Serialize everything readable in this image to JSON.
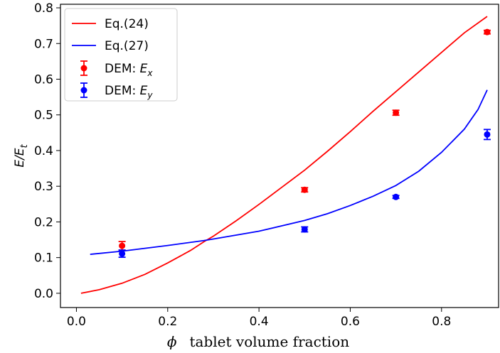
{
  "chart_data": {
    "type": "line",
    "xlabel_symbol": "ϕ",
    "xlabel_text": "tablet volume fraction",
    "ylabel_main": "E/E",
    "ylabel_sub": "t",
    "xlim": [
      -0.035,
      0.925
    ],
    "ylim": [
      -0.04,
      0.81
    ],
    "xticks": [
      0.0,
      0.2,
      0.4,
      0.6,
      0.8
    ],
    "yticks": [
      0.0,
      0.1,
      0.2,
      0.3,
      0.4,
      0.5,
      0.6,
      0.7,
      0.8
    ],
    "grid": false,
    "legend_position": "top-left",
    "series": [
      {
        "name": "Eq.(24)",
        "kind": "line",
        "color": "#ff0000",
        "x": [
          0.01,
          0.05,
          0.1,
          0.15,
          0.2,
          0.25,
          0.28,
          0.3,
          0.35,
          0.4,
          0.45,
          0.5,
          0.55,
          0.6,
          0.65,
          0.7,
          0.75,
          0.8,
          0.85,
          0.9
        ],
        "y": [
          0.0,
          0.01,
          0.028,
          0.053,
          0.085,
          0.12,
          0.145,
          0.16,
          0.203,
          0.249,
          0.297,
          0.345,
          0.398,
          0.453,
          0.51,
          0.565,
          0.62,
          0.675,
          0.73,
          0.776
        ]
      },
      {
        "name": "Eq.(27)",
        "kind": "line",
        "color": "#0000ff",
        "x": [
          0.03,
          0.1,
          0.2,
          0.28,
          0.3,
          0.4,
          0.5,
          0.55,
          0.6,
          0.65,
          0.7,
          0.75,
          0.8,
          0.85,
          0.88,
          0.9
        ],
        "y": [
          0.109,
          0.118,
          0.134,
          0.148,
          0.152,
          0.174,
          0.204,
          0.223,
          0.246,
          0.272,
          0.302,
          0.342,
          0.395,
          0.46,
          0.515,
          0.57
        ]
      },
      {
        "name_prefix": "DEM: ",
        "name_var": "E",
        "name_sub": "x",
        "kind": "errorbar",
        "color": "#ff0000",
        "x": [
          0.1,
          0.5,
          0.7,
          0.9
        ],
        "y": [
          0.133,
          0.29,
          0.506,
          0.732
        ],
        "yerr": [
          0.012,
          0.006,
          0.007,
          0.005
        ]
      },
      {
        "name_prefix": "DEM: ",
        "name_var": "E",
        "name_sub": "y",
        "kind": "errorbar",
        "color": "#0000ff",
        "x": [
          0.1,
          0.5,
          0.7,
          0.9
        ],
        "y": [
          0.111,
          0.179,
          0.27,
          0.445
        ],
        "yerr": [
          0.01,
          0.007,
          0.004,
          0.014
        ]
      }
    ]
  }
}
